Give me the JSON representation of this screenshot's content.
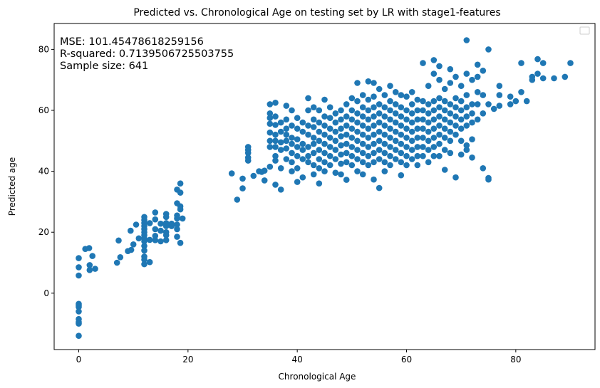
{
  "chart_data": {
    "type": "scatter",
    "title": "Predicted vs. Chronological Age on testing set by LR with stage1-features",
    "xlabel": "Chronological Age",
    "ylabel": "Predicted age",
    "xlim": [
      -4.5,
      94.5
    ],
    "ylim": [
      -18.5,
      88.5
    ],
    "xticks": [
      0,
      20,
      40,
      60,
      80
    ],
    "yticks": [
      0,
      20,
      40,
      60,
      80
    ],
    "grid": false,
    "legend": {
      "placement": "top-right",
      "entries": []
    },
    "annotations": [
      "MSE: 101.45478618259156",
      "R-squared: 0.7139506725503755",
      "Sample size: 641"
    ],
    "marker_color": "#1f77b4",
    "points": [
      [
        0,
        11.5
      ],
      [
        0,
        8.5
      ],
      [
        0,
        5.8
      ],
      [
        0,
        -3.5
      ],
      [
        0,
        -4
      ],
      [
        0,
        -4.5
      ],
      [
        0,
        -6
      ],
      [
        0,
        -8.5
      ],
      [
        0,
        -9.5
      ],
      [
        0,
        -10
      ],
      [
        0,
        -14
      ],
      [
        1.2,
        14.5
      ],
      [
        1.9,
        14.8
      ],
      [
        2,
        9.2
      ],
      [
        2,
        7.6
      ],
      [
        2.5,
        12.2
      ],
      [
        3,
        8
      ],
      [
        7,
        10
      ],
      [
        7.3,
        17.3
      ],
      [
        7.6,
        11.8
      ],
      [
        9,
        13.8
      ],
      [
        9.5,
        20.5
      ],
      [
        9.6,
        14.2
      ],
      [
        10,
        16
      ],
      [
        10.5,
        22.5
      ],
      [
        11,
        18
      ],
      [
        12,
        25
      ],
      [
        12,
        24
      ],
      [
        12,
        23
      ],
      [
        12,
        22
      ],
      [
        12,
        21
      ],
      [
        12,
        20
      ],
      [
        12,
        19
      ],
      [
        12,
        18
      ],
      [
        12,
        17
      ],
      [
        12,
        15.5
      ],
      [
        12,
        14
      ],
      [
        12,
        12
      ],
      [
        12,
        11
      ],
      [
        12,
        9.5
      ],
      [
        13,
        23
      ],
      [
        13,
        17.5
      ],
      [
        13,
        10.2
      ],
      [
        14,
        26.5
      ],
      [
        14,
        24.2
      ],
      [
        14,
        21
      ],
      [
        14,
        18.8
      ],
      [
        14,
        17.4
      ],
      [
        15,
        20.5
      ],
      [
        15,
        17
      ],
      [
        15,
        22.8
      ],
      [
        16,
        26
      ],
      [
        16,
        25
      ],
      [
        16,
        23
      ],
      [
        16,
        22
      ],
      [
        16,
        20
      ],
      [
        16,
        19
      ],
      [
        16,
        17.4
      ],
      [
        17,
        22
      ],
      [
        17,
        22.8
      ],
      [
        18,
        34
      ],
      [
        18,
        29.5
      ],
      [
        18,
        25.5
      ],
      [
        18,
        24.5
      ],
      [
        18,
        22.5
      ],
      [
        18,
        21
      ],
      [
        18,
        18.5
      ],
      [
        18.6,
        36
      ],
      [
        18.6,
        33
      ],
      [
        18.6,
        28.5
      ],
      [
        18.6,
        27.5
      ],
      [
        18.6,
        16.5
      ],
      [
        19,
        24.5
      ],
      [
        28,
        39.3
      ],
      [
        29,
        30.7
      ],
      [
        30,
        34.4
      ],
      [
        30,
        37.6
      ],
      [
        31,
        48
      ],
      [
        31,
        47
      ],
      [
        31,
        46
      ],
      [
        31,
        44.5
      ],
      [
        31,
        43.5
      ],
      [
        32,
        38.5
      ],
      [
        33,
        40
      ],
      [
        33.5,
        39.8
      ],
      [
        34,
        40.2
      ],
      [
        34,
        37
      ],
      [
        35,
        62
      ],
      [
        35,
        59
      ],
      [
        35,
        57.5
      ],
      [
        35,
        55.6
      ],
      [
        35,
        52.7
      ],
      [
        35,
        50
      ],
      [
        35,
        48
      ],
      [
        35,
        41.5
      ],
      [
        36,
        62.5
      ],
      [
        36,
        58
      ],
      [
        36,
        55.2
      ],
      [
        36,
        52
      ],
      [
        36,
        50
      ],
      [
        36,
        48
      ],
      [
        36,
        45
      ],
      [
        36,
        43.5
      ],
      [
        36,
        35.6
      ],
      [
        37,
        34
      ],
      [
        37,
        56
      ],
      [
        37,
        53
      ],
      [
        37,
        49.5
      ],
      [
        37,
        47
      ],
      [
        37,
        41
      ],
      [
        38,
        61.5
      ],
      [
        38,
        57
      ],
      [
        38,
        54
      ],
      [
        38,
        52
      ],
      [
        38,
        50
      ],
      [
        38,
        47.5
      ],
      [
        38,
        44
      ],
      [
        39,
        60
      ],
      [
        39,
        55
      ],
      [
        39,
        51
      ],
      [
        39,
        49
      ],
      [
        39,
        46
      ],
      [
        39,
        43
      ],
      [
        39,
        40
      ],
      [
        40,
        57.5
      ],
      [
        40,
        54
      ],
      [
        40,
        50.5
      ],
      [
        40,
        48
      ],
      [
        40,
        45
      ],
      [
        40,
        41
      ],
      [
        40,
        36.5
      ],
      [
        41,
        56
      ],
      [
        41,
        53
      ],
      [
        41,
        49
      ],
      [
        41,
        47
      ],
      [
        41,
        44
      ],
      [
        41,
        38
      ],
      [
        42,
        64
      ],
      [
        42,
        60
      ],
      [
        42,
        55
      ],
      [
        42,
        52
      ],
      [
        42,
        48
      ],
      [
        42,
        45
      ],
      [
        42,
        43
      ],
      [
        43,
        61
      ],
      [
        43,
        57
      ],
      [
        43,
        54.5
      ],
      [
        43,
        51
      ],
      [
        43,
        49
      ],
      [
        43,
        46
      ],
      [
        43,
        42
      ],
      [
        43,
        39
      ],
      [
        44,
        60
      ],
      [
        44,
        56
      ],
      [
        44,
        53
      ],
      [
        44,
        50
      ],
      [
        44,
        47
      ],
      [
        44,
        44
      ],
      [
        44,
        41
      ],
      [
        44,
        36
      ],
      [
        45,
        63.5
      ],
      [
        45,
        58
      ],
      [
        45,
        55
      ],
      [
        45,
        52
      ],
      [
        45,
        49
      ],
      [
        45,
        46
      ],
      [
        45,
        43
      ],
      [
        45,
        40
      ],
      [
        46,
        61
      ],
      [
        46,
        57.5
      ],
      [
        46,
        54
      ],
      [
        46,
        51
      ],
      [
        46,
        48
      ],
      [
        46,
        45
      ],
      [
        46,
        42
      ],
      [
        47,
        59
      ],
      [
        47,
        56
      ],
      [
        47,
        53
      ],
      [
        47,
        50
      ],
      [
        47,
        47
      ],
      [
        47,
        44
      ],
      [
        47,
        39.5
      ],
      [
        48,
        60
      ],
      [
        48,
        57
      ],
      [
        48,
        54
      ],
      [
        48,
        51.5
      ],
      [
        48,
        48.5
      ],
      [
        48,
        45.5
      ],
      [
        48,
        42.5
      ],
      [
        48,
        39
      ],
      [
        49,
        62
      ],
      [
        49,
        58
      ],
      [
        49,
        55
      ],
      [
        49,
        52
      ],
      [
        49,
        49
      ],
      [
        49,
        46
      ],
      [
        49,
        43
      ],
      [
        49,
        37.2
      ],
      [
        50,
        64
      ],
      [
        50,
        60
      ],
      [
        50,
        57
      ],
      [
        50,
        54
      ],
      [
        50,
        51
      ],
      [
        50,
        48
      ],
      [
        50,
        45
      ],
      [
        50,
        42
      ],
      [
        51,
        69
      ],
      [
        51,
        63
      ],
      [
        51,
        59
      ],
      [
        51,
        56
      ],
      [
        51,
        53
      ],
      [
        51,
        50
      ],
      [
        51,
        47
      ],
      [
        51,
        44
      ],
      [
        51,
        40
      ],
      [
        52,
        65
      ],
      [
        52,
        61
      ],
      [
        52,
        58
      ],
      [
        52,
        55
      ],
      [
        52,
        52
      ],
      [
        52,
        49
      ],
      [
        52,
        46
      ],
      [
        52,
        43
      ],
      [
        52,
        39
      ],
      [
        53,
        69.5
      ],
      [
        53,
        63.5
      ],
      [
        53,
        60
      ],
      [
        53,
        57
      ],
      [
        53,
        54
      ],
      [
        53,
        51
      ],
      [
        53,
        48
      ],
      [
        53,
        45
      ],
      [
        53,
        42
      ],
      [
        54,
        69
      ],
      [
        54,
        64.5
      ],
      [
        54,
        61
      ],
      [
        54,
        58
      ],
      [
        54,
        55
      ],
      [
        54,
        52
      ],
      [
        54,
        49
      ],
      [
        54,
        46
      ],
      [
        54,
        43
      ],
      [
        54,
        37.3
      ],
      [
        55,
        67
      ],
      [
        55,
        62
      ],
      [
        55,
        59
      ],
      [
        55,
        56
      ],
      [
        55,
        53
      ],
      [
        55,
        50
      ],
      [
        55,
        47
      ],
      [
        55,
        44
      ],
      [
        55,
        34.5
      ],
      [
        56,
        65
      ],
      [
        56,
        61
      ],
      [
        56,
        58
      ],
      [
        56,
        55
      ],
      [
        56,
        52
      ],
      [
        56,
        49
      ],
      [
        56,
        46
      ],
      [
        56,
        43
      ],
      [
        56,
        40
      ],
      [
        57,
        68
      ],
      [
        57,
        63
      ],
      [
        57,
        60
      ],
      [
        57,
        57
      ],
      [
        57,
        54
      ],
      [
        57,
        51
      ],
      [
        57,
        48
      ],
      [
        57,
        45
      ],
      [
        57,
        42
      ],
      [
        58,
        66
      ],
      [
        58,
        62
      ],
      [
        58,
        59
      ],
      [
        58,
        56
      ],
      [
        58,
        53
      ],
      [
        58,
        50
      ],
      [
        58,
        47
      ],
      [
        58,
        44
      ],
      [
        59,
        65
      ],
      [
        59,
        61
      ],
      [
        59,
        58
      ],
      [
        59,
        55
      ],
      [
        59,
        52
      ],
      [
        59,
        49
      ],
      [
        59,
        46
      ],
      [
        59,
        43
      ],
      [
        59,
        38.7
      ],
      [
        60,
        64.5
      ],
      [
        60,
        60
      ],
      [
        60,
        57
      ],
      [
        60,
        54
      ],
      [
        60,
        51
      ],
      [
        60,
        48
      ],
      [
        60,
        45
      ],
      [
        60,
        42
      ],
      [
        61,
        66
      ],
      [
        61,
        62
      ],
      [
        61,
        59
      ],
      [
        61,
        56
      ],
      [
        61,
        53
      ],
      [
        61,
        50
      ],
      [
        61,
        47
      ],
      [
        61,
        44
      ],
      [
        62,
        63.5
      ],
      [
        62,
        60
      ],
      [
        62,
        57
      ],
      [
        62,
        54
      ],
      [
        62,
        51
      ],
      [
        62,
        48
      ],
      [
        62,
        45
      ],
      [
        62,
        42
      ],
      [
        63,
        75.5
      ],
      [
        63,
        63
      ],
      [
        63,
        60
      ],
      [
        63,
        57
      ],
      [
        63,
        54
      ],
      [
        63,
        51
      ],
      [
        63,
        48
      ],
      [
        63,
        45
      ],
      [
        64,
        68
      ],
      [
        64,
        62
      ],
      [
        64,
        59
      ],
      [
        64,
        56
      ],
      [
        64,
        53
      ],
      [
        64,
        50
      ],
      [
        64,
        47
      ],
      [
        64,
        43
      ],
      [
        65,
        76.5
      ],
      [
        65,
        72
      ],
      [
        65,
        63
      ],
      [
        65,
        60
      ],
      [
        65,
        57
      ],
      [
        65,
        54
      ],
      [
        65,
        51
      ],
      [
        65,
        48
      ],
      [
        65,
        45
      ],
      [
        66,
        74.5
      ],
      [
        66,
        70
      ],
      [
        66,
        64
      ],
      [
        66,
        61
      ],
      [
        66,
        58
      ],
      [
        66,
        55
      ],
      [
        66,
        52
      ],
      [
        66,
        49
      ],
      [
        66,
        45
      ],
      [
        67,
        67
      ],
      [
        67,
        63
      ],
      [
        67,
        60
      ],
      [
        67,
        57
      ],
      [
        67,
        54
      ],
      [
        67,
        51
      ],
      [
        67,
        47
      ],
      [
        67,
        40.5
      ],
      [
        68,
        73.5
      ],
      [
        68,
        69
      ],
      [
        68,
        62
      ],
      [
        68,
        59
      ],
      [
        68,
        56
      ],
      [
        68,
        53
      ],
      [
        68,
        50
      ],
      [
        68,
        46
      ],
      [
        69,
        71
      ],
      [
        69,
        64
      ],
      [
        69,
        61
      ],
      [
        69,
        58
      ],
      [
        69,
        55
      ],
      [
        69,
        52
      ],
      [
        69,
        38
      ],
      [
        70,
        68
      ],
      [
        70,
        63
      ],
      [
        70,
        60
      ],
      [
        70,
        57
      ],
      [
        70,
        54
      ],
      [
        70,
        50
      ],
      [
        70,
        45.5
      ],
      [
        71,
        83
      ],
      [
        71,
        72
      ],
      [
        71,
        65
      ],
      [
        71,
        61
      ],
      [
        71,
        58
      ],
      [
        71,
        55
      ],
      [
        71,
        48.5
      ],
      [
        71,
        47
      ],
      [
        72,
        70
      ],
      [
        72,
        62
      ],
      [
        72,
        59
      ],
      [
        72,
        56
      ],
      [
        72,
        50.5
      ],
      [
        72,
        44.5
      ],
      [
        73,
        75
      ],
      [
        73,
        71
      ],
      [
        73,
        66
      ],
      [
        73,
        62
      ],
      [
        73,
        57
      ],
      [
        74,
        73
      ],
      [
        74,
        65
      ],
      [
        74,
        59
      ],
      [
        74,
        41
      ],
      [
        75,
        80
      ],
      [
        75,
        62
      ],
      [
        75,
        37.8
      ],
      [
        75,
        37.3
      ],
      [
        76,
        60.5
      ],
      [
        77,
        68
      ],
      [
        77,
        65
      ],
      [
        77,
        61.5
      ],
      [
        79,
        64.5
      ],
      [
        79,
        62
      ],
      [
        80,
        63
      ],
      [
        81,
        75.5
      ],
      [
        81,
        66
      ],
      [
        82,
        63
      ],
      [
        83,
        71
      ],
      [
        83,
        70
      ],
      [
        84,
        76.8
      ],
      [
        84,
        72
      ],
      [
        85,
        75.5
      ],
      [
        85,
        70.5
      ],
      [
        87,
        70.5
      ],
      [
        89,
        71
      ],
      [
        90,
        75.5
      ]
    ]
  }
}
